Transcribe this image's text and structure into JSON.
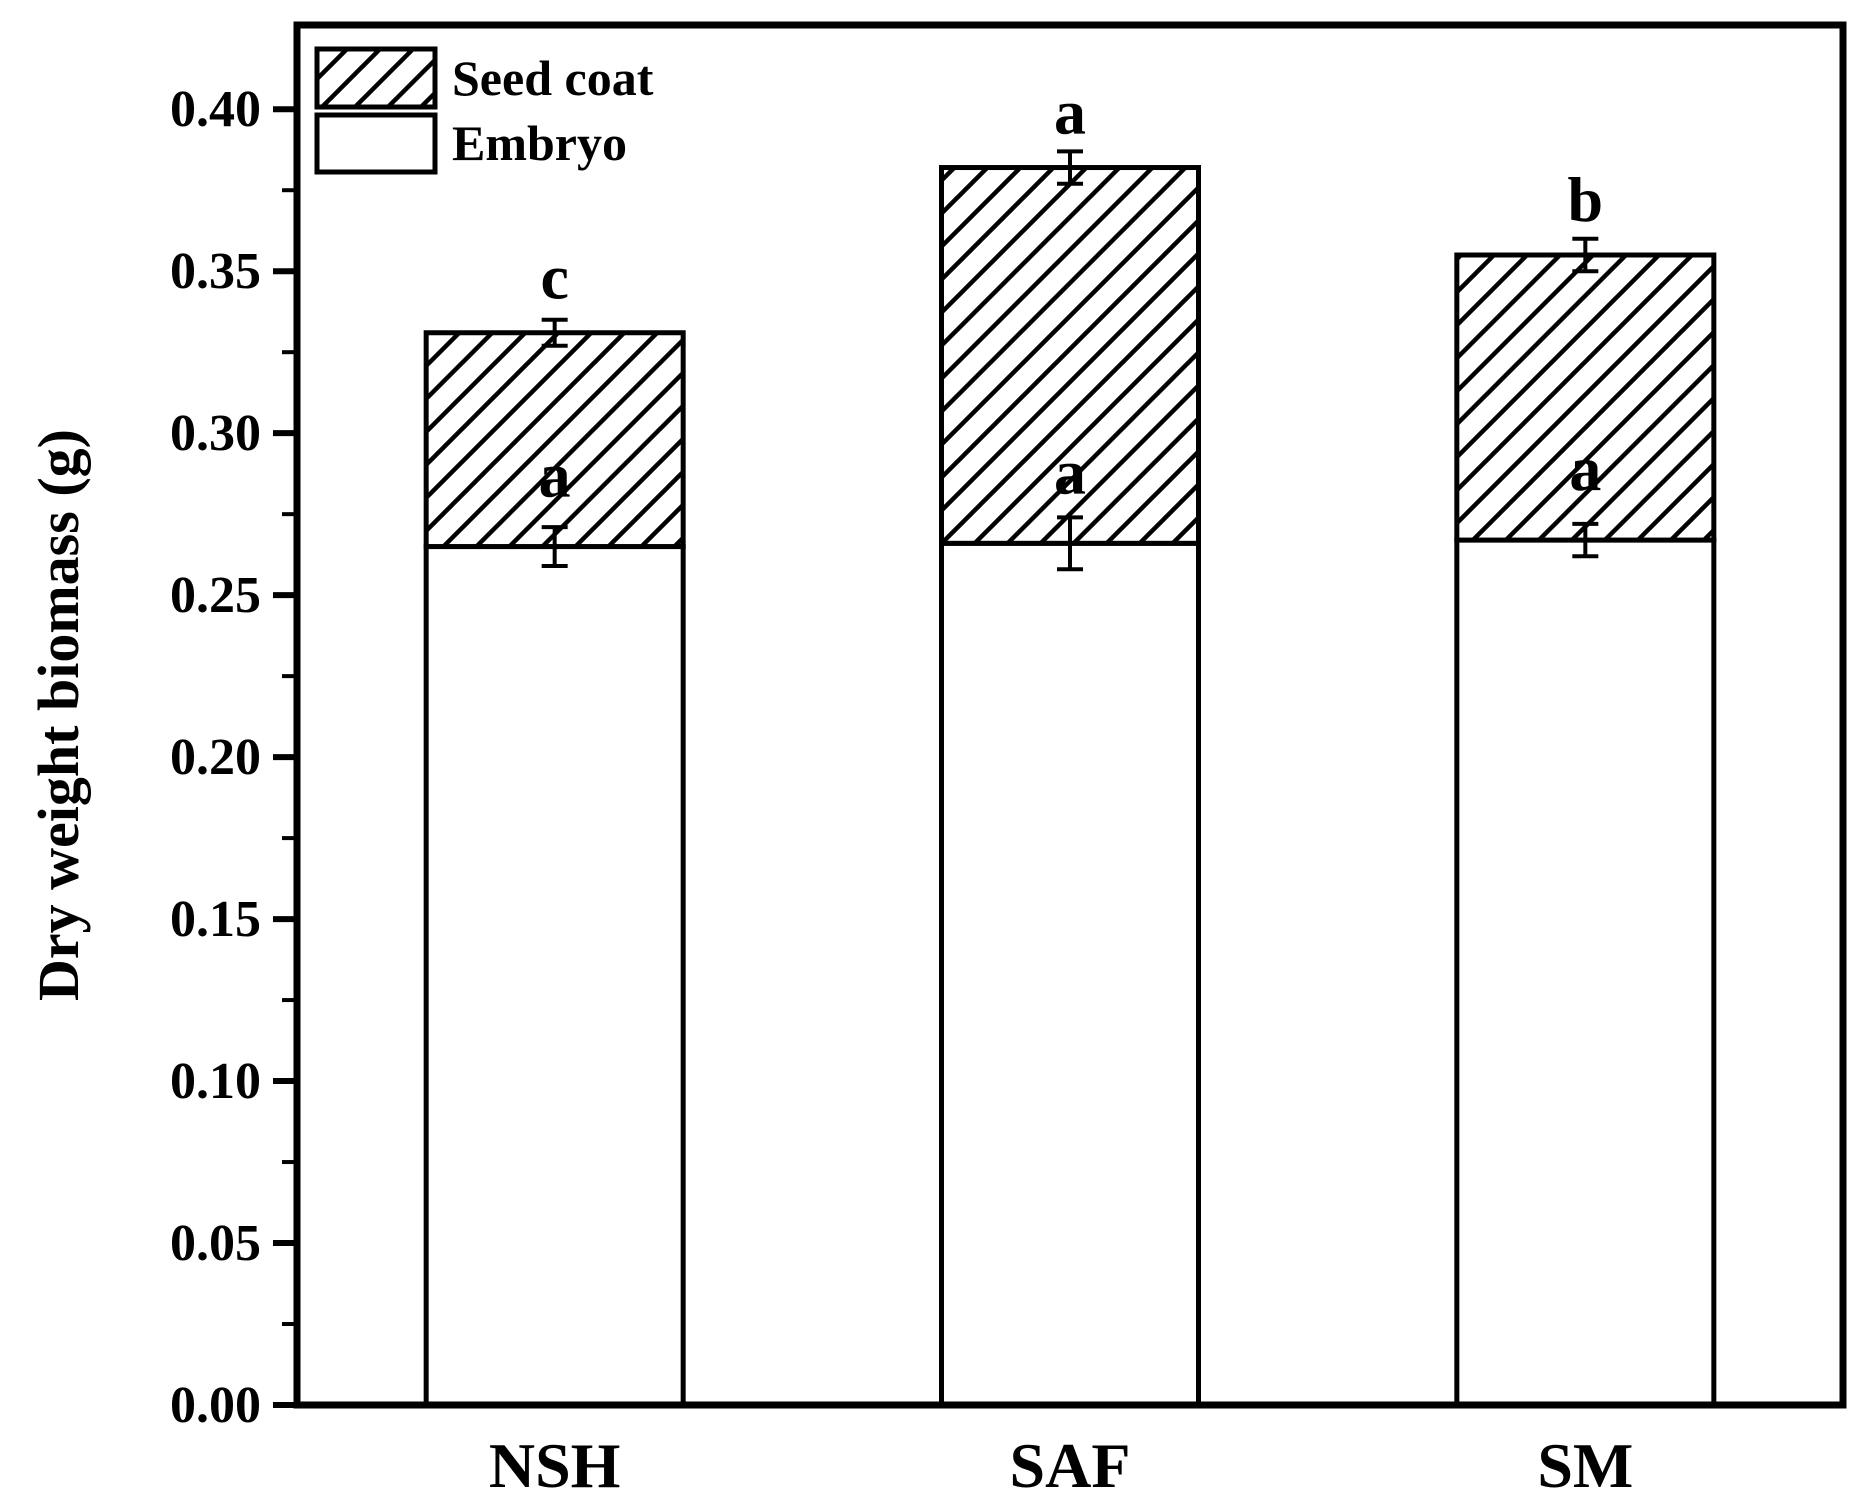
{
  "page": {
    "background": "#ffffff",
    "ink_color": "#000000"
  },
  "chart_data": {
    "type": "bar",
    "stacked": true,
    "title": "",
    "xlabel": "",
    "ylabel": "Dry weight biomass (g)",
    "categories": [
      "NSH",
      "SAF",
      "SM"
    ],
    "series": [
      {
        "name": "Embryo",
        "style": "solid-white",
        "values": [
          0.265,
          0.266,
          0.267
        ],
        "errors": [
          0.006,
          0.008,
          0.005
        ],
        "sig_letters": [
          "a",
          "a",
          "a"
        ]
      },
      {
        "name": "Seed coat",
        "style": "diagonal-hatch",
        "values": [
          0.066,
          0.116,
          0.088
        ]
      }
    ],
    "totals": {
      "values": [
        0.331,
        0.382,
        0.355
      ],
      "errors": [
        0.004,
        0.005,
        0.005
      ],
      "sig_letters": [
        "c",
        "a",
        "b"
      ]
    },
    "ylim": [
      0,
      0.426
    ],
    "y_major_step": 0.05,
    "y_minor_step": 0.025,
    "y_major_tick_labels": [
      "0.00",
      "0.05",
      "0.10",
      "0.15",
      "0.20",
      "0.25",
      "0.30",
      "0.35",
      "0.40"
    ],
    "grid": false,
    "legend": {
      "position": "top-left-inside",
      "entries": [
        "Seed coat",
        "Embryo"
      ]
    },
    "colors": {
      "ink": "#000000",
      "bar_fill": "#ffffff"
    }
  }
}
